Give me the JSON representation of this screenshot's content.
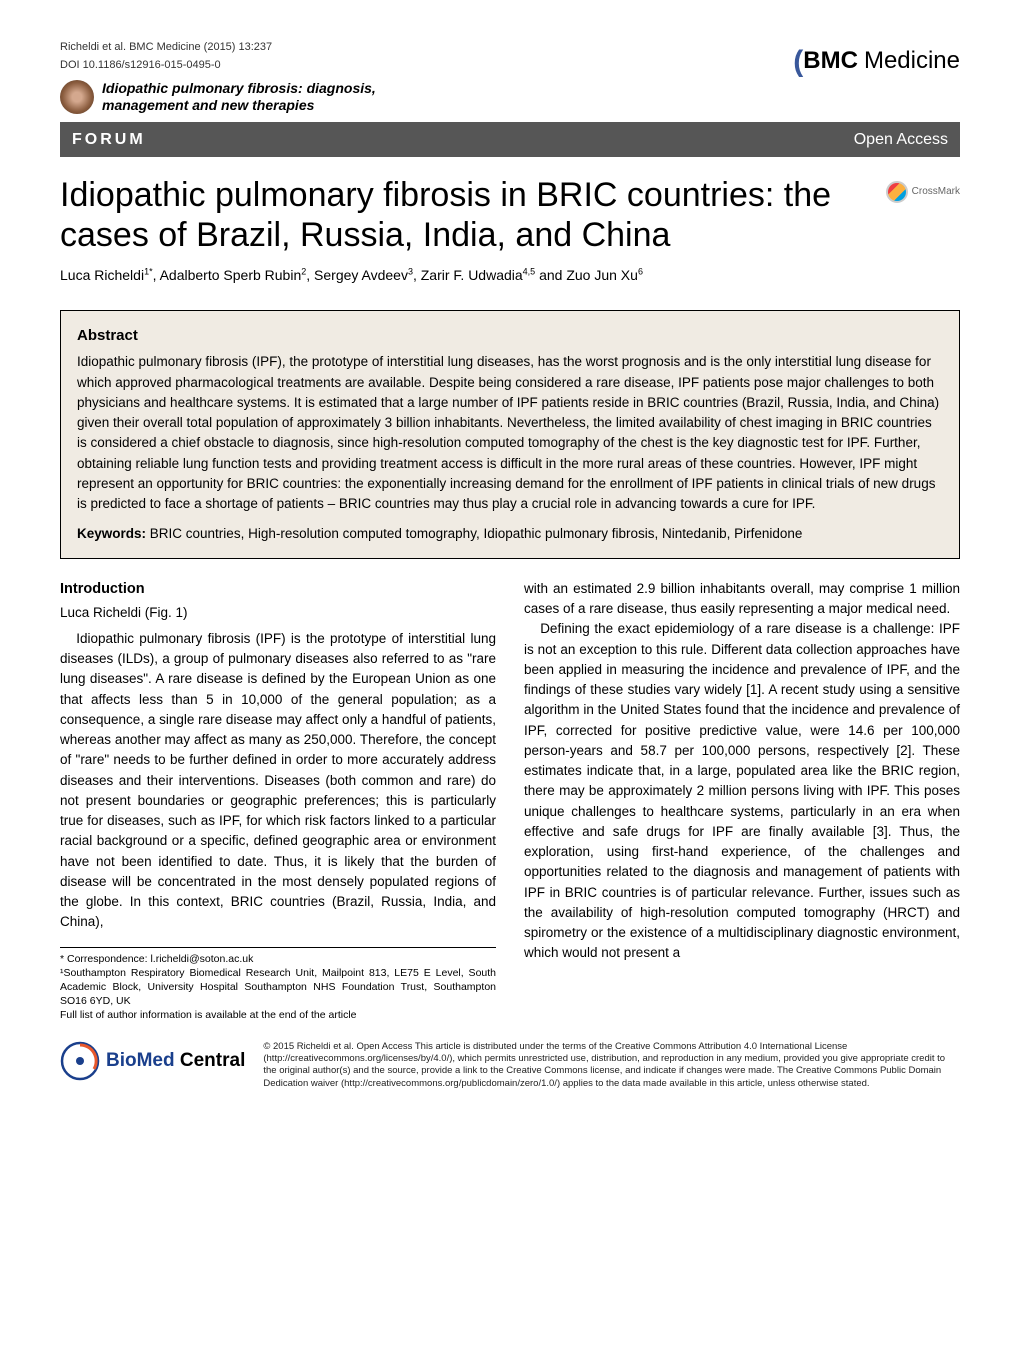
{
  "meta": {
    "citation": "Richeldi et al. BMC Medicine  (2015) 13:237",
    "doi": "DOI 10.1186/s12916-015-0495-0"
  },
  "series": {
    "title_line1": "Idiopathic pulmonary fibrosis: diagnosis,",
    "title_line2": "management and new therapies"
  },
  "journal": {
    "name_prefix": "BMC",
    "name_suffix": "Medicine"
  },
  "forum_bar": {
    "label": "FORUM",
    "open_access": "Open Access"
  },
  "crossmark": {
    "label": "CrossMark"
  },
  "article": {
    "title": "Idiopathic pulmonary fibrosis in BRIC countries: the cases of Brazil, Russia, India, and China",
    "authors_html": "Luca Richeldi<sup>1*</sup>, Adalberto Sperb Rubin<sup>2</sup>, Sergey Avdeev<sup>3</sup>, Zarir F. Udwadia<sup>4,5</sup> and Zuo Jun Xu<sup>6</sup>"
  },
  "abstract": {
    "heading": "Abstract",
    "body": "Idiopathic pulmonary fibrosis (IPF), the prototype of interstitial lung diseases, has the worst prognosis and is the only interstitial lung disease for which approved pharmacological treatments are available. Despite being considered a rare disease, IPF patients pose major challenges to both physicians and healthcare systems. It is estimated that a large number of IPF patients reside in BRIC countries (Brazil, Russia, India, and China) given their overall total population of approximately 3 billion inhabitants. Nevertheless, the limited availability of chest imaging in BRIC countries is considered a chief obstacle to diagnosis, since high-resolution computed tomography of the chest is the key diagnostic test for IPF. Further, obtaining reliable lung function tests and providing treatment access is difficult in the more rural areas of these countries. However, IPF might represent an opportunity for BRIC countries: the exponentially increasing demand for the enrollment of IPF patients in clinical trials of new drugs is predicted to face a shortage of patients – BRIC countries may thus play a crucial role in advancing towards a cure for IPF.",
    "keywords_label": "Keywords:",
    "keywords": " BRIC countries, High-resolution computed tomography, Idiopathic pulmonary fibrosis, Nintedanib, Pirfenidone"
  },
  "introduction": {
    "heading": "Introduction",
    "subheading": "Luca Richeldi (Fig. 1)",
    "col1_p1": "Idiopathic pulmonary fibrosis (IPF) is the prototype of interstitial lung diseases (ILDs), a group of pulmonary diseases also referred to as \"rare lung diseases\". A rare disease is defined by the European Union as one that affects less than 5 in 10,000 of the general population; as a consequence, a single rare disease may affect only a handful of patients, whereas another may affect as many as 250,000. Therefore, the concept of \"rare\" needs to be further defined in order to more accurately address diseases and their interventions. Diseases (both common and rare) do not present boundaries or geographic preferences; this is particularly true for diseases, such as IPF, for which risk factors linked to a particular racial background or a specific, defined geographic area or environment have not been identified to date. Thus, it is likely that the burden of disease will be concentrated in the most densely populated regions of the globe. In this context, BRIC countries (Brazil, Russia, India, and China),",
    "col2_p1": "with an estimated 2.9 billion inhabitants overall, may comprise 1 million cases of a rare disease, thus easily representing a major medical need.",
    "col2_p2": "Defining the exact epidemiology of a rare disease is a challenge: IPF is not an exception to this rule. Different data collection approaches have been applied in measuring the incidence and prevalence of IPF, and the findings of these studies vary widely [1]. A recent study using a sensitive algorithm in the United States found that the incidence and prevalence of IPF, corrected for positive predictive value, were 14.6 per 100,000 person-years and 58.7 per 100,000 persons, respectively [2]. These estimates indicate that, in a large, populated area like the BRIC region, there may be approximately 2 million persons living with IPF. This poses unique challenges to healthcare systems, particularly in an era when effective and safe drugs for IPF are finally available [3]. Thus, the exploration, using first-hand experience, of the challenges and opportunities related to the diagnosis and management of patients with IPF in BRIC countries is of particular relevance. Further, issues such as the availability of high-resolution computed tomography (HRCT) and spirometry or the existence of a multidisciplinary diagnostic environment, which would not present a"
  },
  "footnotes": {
    "correspondence": "* Correspondence: l.richeldi@soton.ac.uk",
    "affiliation": "¹Southampton Respiratory Biomedical Research Unit, Mailpoint 813, LE75 E Level, South Academic Block, University Hospital Southampton NHS Foundation Trust, Southampton SO16 6YD, UK",
    "full_list": "Full list of author information is available at the end of the article"
  },
  "publisher": {
    "logo_bio": "BioMed",
    "logo_central": " Central"
  },
  "license": {
    "text": "© 2015 Richeldi et al. Open Access This article is distributed under the terms of the Creative Commons Attribution 4.0 International License (http://creativecommons.org/licenses/by/4.0/), which permits unrestricted use, distribution, and reproduction in any medium, provided you give appropriate credit to the original author(s) and the source, provide a link to the Creative Commons license, and indicate if changes were made. The Creative Commons Public Domain Dedication waiver (http://creativecommons.org/publicdomain/zero/1.0/) applies to the data made available in this article, unless otherwise stated."
  },
  "colors": {
    "forum_bar_bg": "#565656",
    "abstract_bg": "#f0ebe3",
    "bmc_blue": "#1a3f8c",
    "logo_swoosh": "#39589b"
  }
}
